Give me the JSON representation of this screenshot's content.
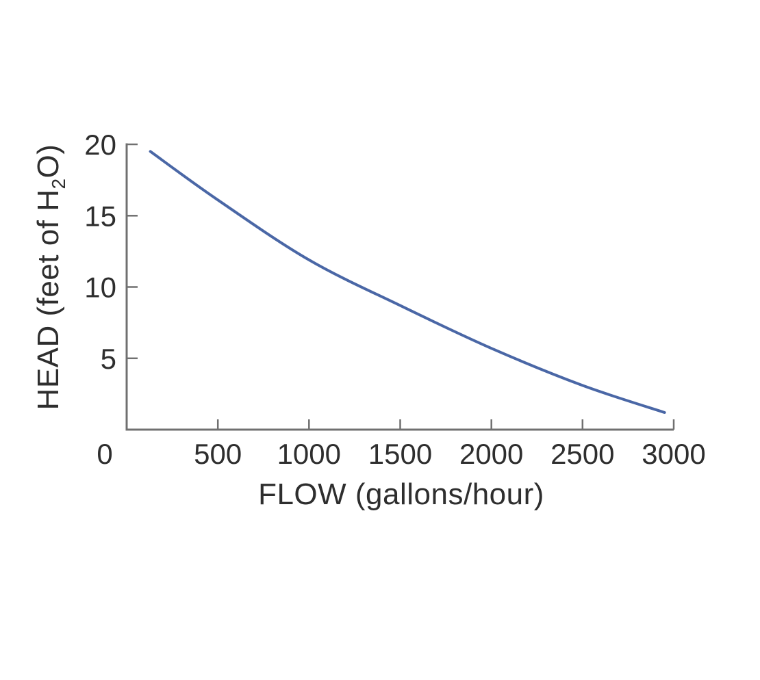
{
  "page": {
    "background": "#ffffff"
  },
  "chart_data": {
    "type": "line",
    "title": "",
    "xlabel": "FLOW (gallons/hour)",
    "ylabel": "HEAD (feet of H₂O)",
    "ylabel_parts": {
      "pre": "HEAD (feet of H",
      "sub": "2",
      "post": "O)"
    },
    "xlim": [
      0,
      3000
    ],
    "ylim": [
      0,
      20
    ],
    "x_ticks": [
      0,
      500,
      1000,
      1500,
      2000,
      2500,
      3000
    ],
    "y_ticks": [
      5,
      10,
      15,
      20
    ],
    "grid": false,
    "legend": false,
    "series": [
      {
        "points_flow_head": [
          [
            130,
            19.5
          ],
          [
            500,
            16.1
          ],
          [
            1000,
            11.9
          ],
          [
            1500,
            8.7
          ],
          [
            2000,
            5.7
          ],
          [
            2500,
            3.1
          ],
          [
            2950,
            1.2
          ]
        ],
        "color": "#4a67a6"
      }
    ],
    "colors": {
      "axis": "#707070",
      "tick_text": "#2e2e2e",
      "curve": "#4a67a6"
    }
  }
}
